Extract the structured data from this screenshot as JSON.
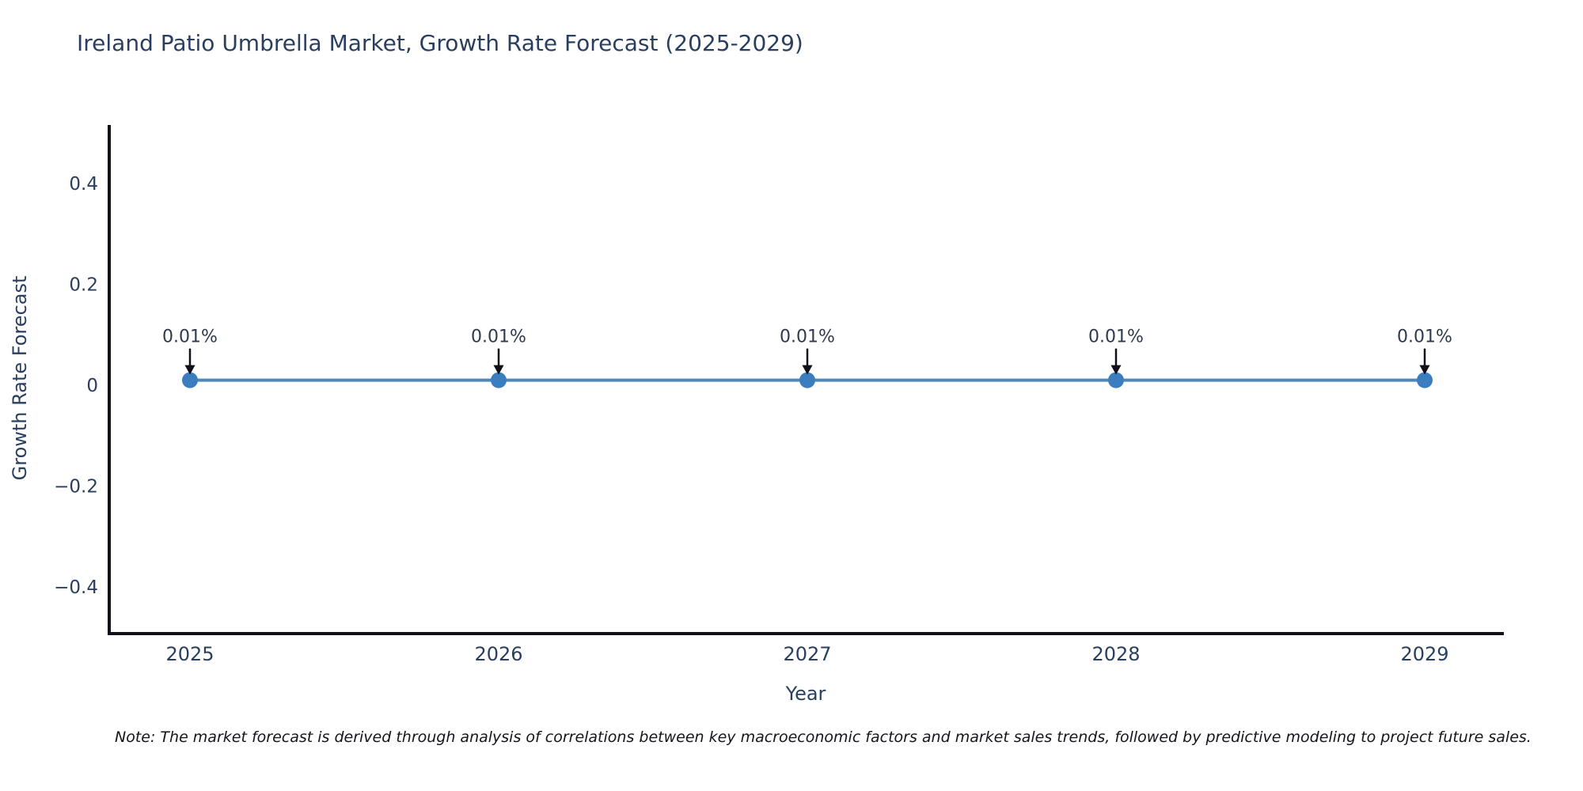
{
  "title": "Ireland Patio Umbrella Market, Growth Rate Forecast (2025-2029)",
  "note": "Note: The market forecast is derived through analysis of correlations between key macroeconomic factors and market sales trends, followed by predictive modeling to project future sales.",
  "chart_data": {
    "type": "line",
    "title": "Ireland Patio Umbrella Market, Growth Rate Forecast (2025-2029)",
    "xlabel": "Year",
    "ylabel": "Growth Rate Forecast",
    "x": [
      2025,
      2026,
      2027,
      2028,
      2029
    ],
    "xtick_labels": [
      "2025",
      "2026",
      "2027",
      "2028",
      "2029"
    ],
    "series": [
      {
        "name": "Growth Rate Forecast",
        "values": [
          0.01,
          0.01,
          0.01,
          0.01,
          0.01
        ]
      }
    ],
    "point_labels": [
      "0.01%",
      "0.01%",
      "0.01%",
      "0.01%",
      "0.01%"
    ],
    "yticks": [
      0.4,
      0.2,
      0,
      -0.2,
      -0.4
    ],
    "ytick_labels": [
      "0.4",
      "0.2",
      "0",
      "−0.2",
      "−0.4"
    ],
    "ylim": [
      -0.49,
      0.52
    ],
    "grid": false,
    "legend": "none",
    "colors": {
      "line": "#4f87b6",
      "marker": "#3a7ebf",
      "axis": "#101018",
      "text": "#2a3f5f",
      "annotation": "#2f3a4d",
      "arrow": "#101018",
      "background": "#ffffff"
    }
  }
}
